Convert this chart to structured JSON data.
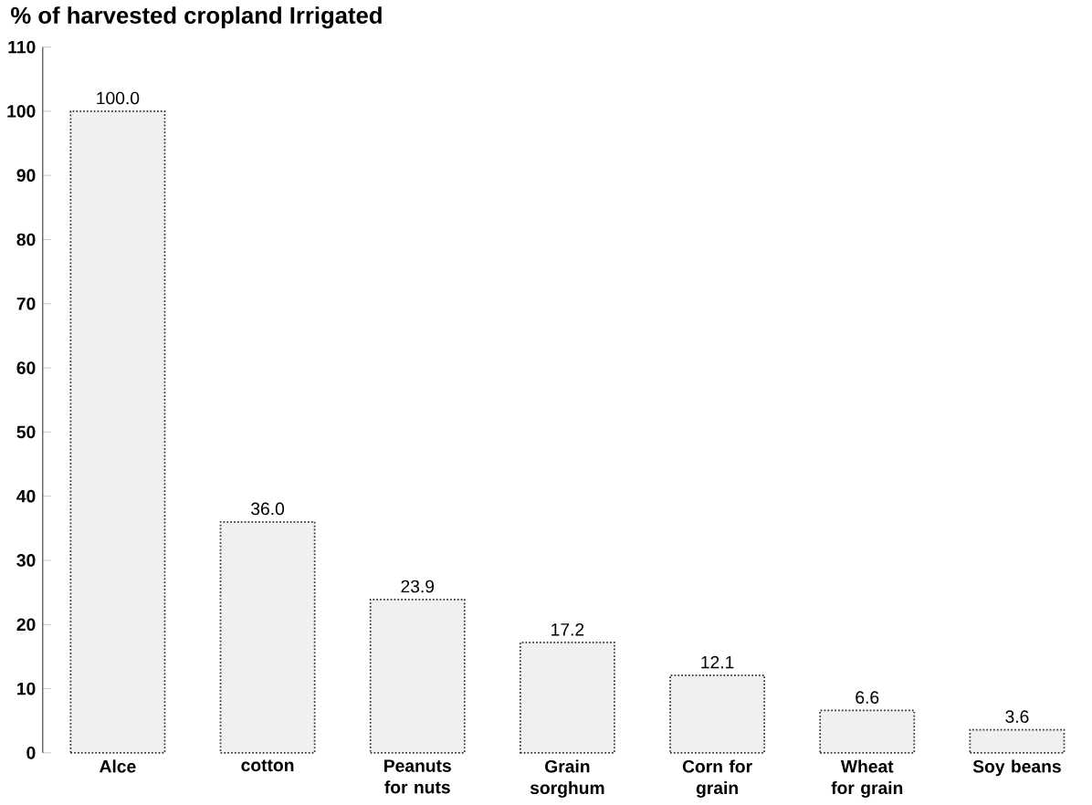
{
  "chart_data": {
    "type": "bar",
    "title": "% of harvested cropland Irrigated",
    "categories": [
      "Alce",
      "cotton",
      "Peanuts for nuts",
      "Grain sorghum",
      "Corn for grain",
      "Wheat for grain",
      "Soy beans"
    ],
    "values": [
      100.0,
      36.0,
      23.9,
      17.2,
      12.1,
      6.6,
      3.6
    ],
    "color": "#333333",
    "value_labels": [
      "100.0",
      "36.0",
      "23.9",
      "17.2",
      "12.1",
      "6.6",
      "3.6"
    ],
    "ylim": [
      0,
      110
    ],
    "yticks": [
      0,
      10,
      20,
      30,
      40,
      50,
      60,
      70,
      80,
      90,
      100,
      110
    ],
    "grid": false
  }
}
